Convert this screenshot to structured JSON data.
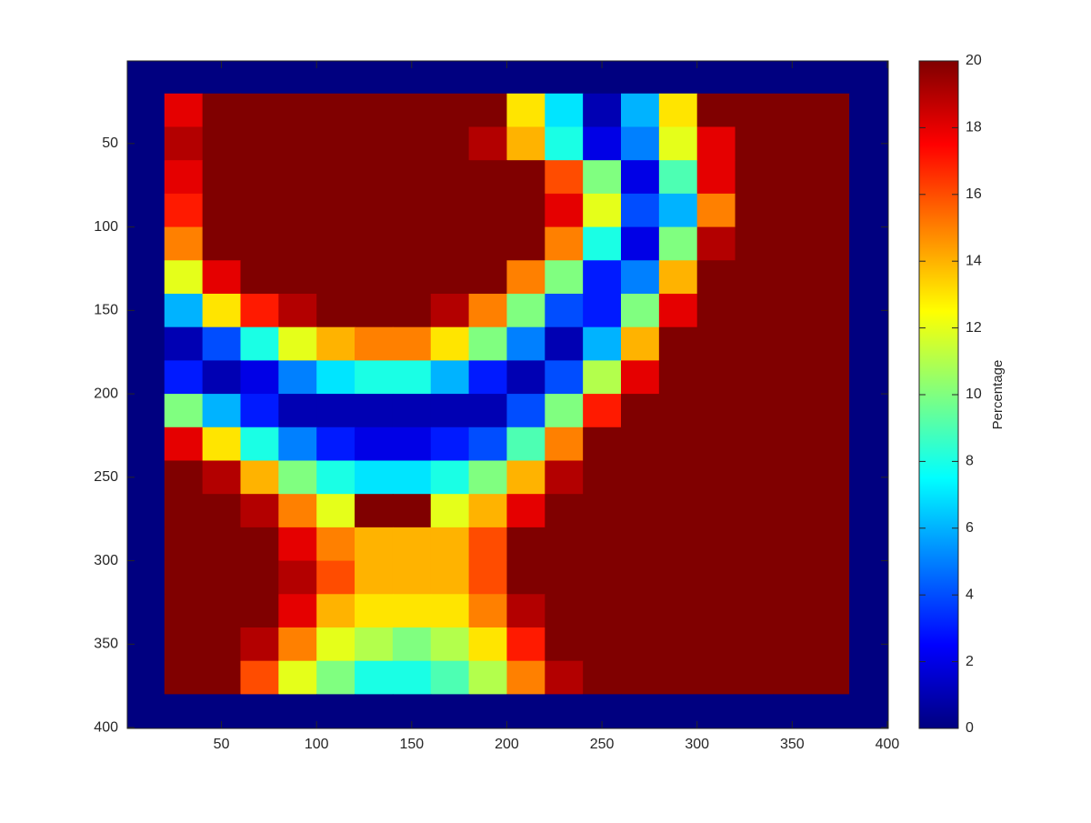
{
  "chart_data": {
    "type": "heatmap",
    "x": [
      10,
      30,
      50,
      70,
      90,
      110,
      130,
      150,
      170,
      190,
      210,
      230,
      250,
      270,
      290,
      310,
      330,
      350,
      370,
      390
    ],
    "y": [
      10,
      30,
      50,
      70,
      90,
      110,
      130,
      150,
      170,
      190,
      210,
      230,
      250,
      270,
      290,
      310,
      330,
      350,
      370,
      390
    ],
    "values": [
      [
        0,
        0,
        0,
        0,
        0,
        0,
        0,
        0,
        0,
        0,
        0,
        0,
        0,
        0,
        0,
        0,
        0,
        0,
        0,
        0
      ],
      [
        0,
        18,
        20,
        20,
        20,
        20,
        20,
        20,
        20,
        20,
        13,
        7,
        1,
        6,
        13,
        20,
        20,
        20,
        20,
        0
      ],
      [
        0,
        19,
        20,
        20,
        20,
        20,
        20,
        20,
        20,
        19,
        14,
        8,
        2,
        5,
        12,
        18,
        20,
        20,
        20,
        0
      ],
      [
        0,
        18,
        20,
        20,
        20,
        20,
        20,
        20,
        20,
        20,
        20,
        16,
        10,
        2,
        9,
        18,
        20,
        20,
        20,
        0
      ],
      [
        0,
        17,
        20,
        20,
        20,
        20,
        20,
        20,
        20,
        20,
        20,
        18,
        12,
        4,
        6,
        15,
        20,
        20,
        20,
        0
      ],
      [
        0,
        15,
        20,
        20,
        20,
        20,
        20,
        20,
        20,
        20,
        20,
        15,
        8,
        2,
        10,
        19,
        20,
        20,
        20,
        0
      ],
      [
        0,
        12,
        18,
        20,
        20,
        20,
        20,
        20,
        20,
        20,
        15,
        10,
        3,
        5,
        14,
        20,
        20,
        20,
        20,
        0
      ],
      [
        0,
        6,
        13,
        17,
        19,
        20,
        20,
        20,
        19,
        15,
        10,
        4,
        3,
        10,
        18,
        20,
        20,
        20,
        20,
        0
      ],
      [
        0,
        1,
        4,
        8,
        12,
        14,
        15,
        15,
        13,
        10,
        5,
        1,
        6,
        14,
        20,
        20,
        20,
        20,
        20,
        0
      ],
      [
        0,
        3,
        1,
        2,
        5,
        7,
        8,
        8,
        6,
        3,
        1,
        4,
        11,
        18,
        20,
        20,
        20,
        20,
        20,
        0
      ],
      [
        0,
        10,
        6,
        3,
        1,
        1,
        1,
        1,
        1,
        1,
        4,
        10,
        17,
        20,
        20,
        20,
        20,
        20,
        20,
        0
      ],
      [
        0,
        18,
        13,
        8,
        5,
        3,
        2,
        2,
        3,
        4,
        9,
        15,
        20,
        20,
        20,
        20,
        20,
        20,
        20,
        0
      ],
      [
        0,
        20,
        19,
        14,
        10,
        8,
        7,
        7,
        8,
        10,
        14,
        19,
        20,
        20,
        20,
        20,
        20,
        20,
        20,
        0
      ],
      [
        0,
        20,
        20,
        19,
        15,
        12,
        20,
        20,
        12,
        14,
        18,
        20,
        20,
        20,
        20,
        20,
        20,
        20,
        20,
        0
      ],
      [
        0,
        20,
        20,
        20,
        18,
        15,
        14,
        14,
        14,
        16,
        20,
        20,
        20,
        20,
        20,
        20,
        20,
        20,
        20,
        0
      ],
      [
        0,
        20,
        20,
        20,
        19,
        16,
        14,
        14,
        14,
        16,
        20,
        20,
        20,
        20,
        20,
        20,
        20,
        20,
        20,
        0
      ],
      [
        0,
        20,
        20,
        20,
        18,
        14,
        13,
        13,
        13,
        15,
        19,
        20,
        20,
        20,
        20,
        20,
        20,
        20,
        20,
        0
      ],
      [
        0,
        20,
        20,
        19,
        15,
        12,
        11,
        10,
        11,
        13,
        17,
        20,
        20,
        20,
        20,
        20,
        20,
        20,
        20,
        0
      ],
      [
        0,
        20,
        20,
        16,
        12,
        10,
        8,
        8,
        9,
        11,
        15,
        19,
        20,
        20,
        20,
        20,
        20,
        20,
        20,
        0
      ],
      [
        0,
        0,
        0,
        0,
        0,
        0,
        0,
        0,
        0,
        0,
        0,
        0,
        0,
        0,
        0,
        0,
        0,
        0,
        0,
        0
      ]
    ],
    "xlim": [
      0.5,
      400.5
    ],
    "ylim": [
      0.5,
      400.5
    ],
    "y_reversed": true,
    "xticks": [
      50,
      100,
      150,
      200,
      250,
      300,
      350,
      400
    ],
    "yticks": [
      50,
      100,
      150,
      200,
      250,
      300,
      350,
      400
    ],
    "colormap": "jet",
    "clim": [
      0,
      20
    ],
    "cticks": [
      0,
      2,
      4,
      6,
      8,
      10,
      12,
      14,
      16,
      18,
      20
    ],
    "colorbar_label": "Percentage"
  }
}
